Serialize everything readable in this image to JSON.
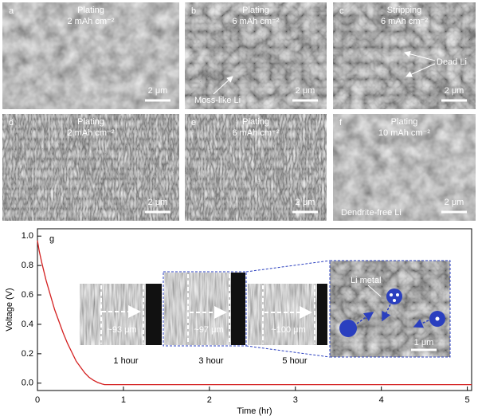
{
  "panels": [
    {
      "letter": "a",
      "title": "Plating",
      "capacity": "2 mAh cm⁻²",
      "scale": "2 μm"
    },
    {
      "letter": "b",
      "title": "Plating",
      "capacity": "6 mAh cm⁻²",
      "scale": "2 μm",
      "annotation": "Moss-like Li"
    },
    {
      "letter": "c",
      "title": "Stripping",
      "capacity": "6 mAh cm⁻²",
      "scale": "2 μm",
      "annotation": "Dead Li"
    },
    {
      "letter": "d",
      "title": "Plating",
      "capacity": "2 mAh cm⁻²",
      "scale": "2 μm"
    },
    {
      "letter": "e",
      "title": "Plating",
      "capacity": "6 mAh cm⁻²",
      "scale": "2 μm"
    },
    {
      "letter": "f",
      "title": "Plating",
      "capacity": "10 mAh cm⁻²",
      "scale": "2 μm",
      "annotation": "Dendrite-free Li"
    }
  ],
  "insets": {
    "images": [
      {
        "thickness": "~93 μm",
        "time": "1 hour"
      },
      {
        "thickness": "~97 μm",
        "time": "3 hour"
      },
      {
        "thickness": "~100 μm",
        "time": "5 hour"
      }
    ],
    "zoom": {
      "label": "Li metal",
      "scale": "1 μm"
    }
  },
  "chart_data": {
    "type": "line",
    "panel_label": "g",
    "x_label": "Time (hr)",
    "y_label": "Voltage (V)",
    "x": [
      0,
      0.02,
      0.05,
      0.1,
      0.15,
      0.2,
      0.25,
      0.3,
      0.35,
      0.4,
      0.45,
      0.5,
      0.55,
      0.6,
      0.65,
      0.7,
      0.75,
      0.78,
      1,
      2,
      3,
      4,
      5.05
    ],
    "values": [
      0.97,
      0.9,
      0.82,
      0.7,
      0.6,
      0.5,
      0.42,
      0.34,
      0.27,
      0.21,
      0.15,
      0.11,
      0.07,
      0.04,
      0.02,
      0.005,
      -0.005,
      -0.01,
      -0.01,
      -0.01,
      -0.01,
      -0.01,
      -0.01
    ],
    "color": "#d42020",
    "xlim": [
      0,
      5.05
    ],
    "ylim": [
      -0.05,
      1.05
    ],
    "xticks": [
      0,
      1,
      2,
      3,
      4,
      5
    ],
    "yticks": [
      {
        "value": 0,
        "label": "0.0"
      },
      {
        "value": 0.2,
        "label": "0.2"
      },
      {
        "value": 0.4,
        "label": "0.4"
      },
      {
        "value": 0.6,
        "label": "0.6"
      },
      {
        "value": 0.8,
        "label": "0.8"
      },
      {
        "value": 1,
        "label": "1.0"
      }
    ]
  }
}
